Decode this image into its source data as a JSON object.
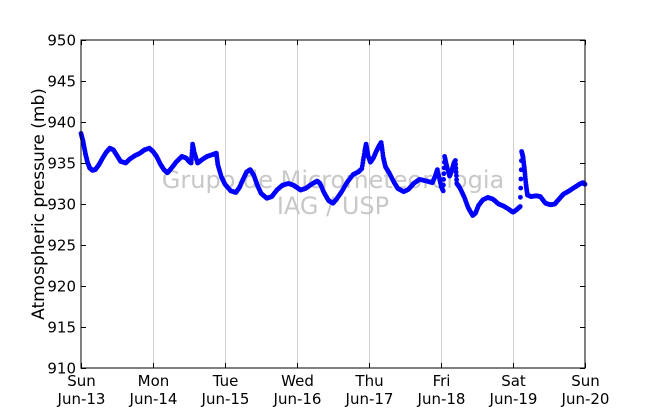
{
  "chart_data": {
    "type": "scatter",
    "title": "",
    "ylabel": "Atmospheric pressure (mb)",
    "xlabel": "",
    "ylim": [
      910,
      950
    ],
    "yticks": [
      910,
      915,
      920,
      925,
      930,
      935,
      940,
      945,
      950
    ],
    "xlim": [
      0,
      7
    ],
    "x_unit": "days since Sun Jun-13",
    "xticks": [
      {
        "day": "Sun",
        "date": "Jun-13"
      },
      {
        "day": "Mon",
        "date": "Jun-14"
      },
      {
        "day": "Tue",
        "date": "Jun-15"
      },
      {
        "day": "Wed",
        "date": "Jun-16"
      },
      {
        "day": "Thu",
        "date": "Jun-17"
      },
      {
        "day": "Fri",
        "date": "Jun-18"
      },
      {
        "day": "Sat",
        "date": "Jun-19"
      },
      {
        "day": "Sun",
        "date": "Jun-20"
      }
    ],
    "grid": "vertical",
    "marker_color": "#0000ff",
    "series": [
      {
        "name": "",
        "points": [
          [
            0.0,
            938.6
          ],
          [
            0.03,
            937.6
          ],
          [
            0.06,
            936.2
          ],
          [
            0.09,
            935.1
          ],
          [
            0.12,
            934.4
          ],
          [
            0.16,
            934.1
          ],
          [
            0.2,
            934.2
          ],
          [
            0.25,
            934.8
          ],
          [
            0.3,
            935.6
          ],
          [
            0.35,
            936.3
          ],
          [
            0.4,
            936.8
          ],
          [
            0.45,
            936.6
          ],
          [
            0.5,
            935.9
          ],
          [
            0.55,
            935.2
          ],
          [
            0.62,
            935.0
          ],
          [
            0.68,
            935.5
          ],
          [
            0.75,
            935.9
          ],
          [
            0.82,
            936.2
          ],
          [
            0.88,
            936.6
          ],
          [
            0.95,
            936.8
          ],
          [
            1.0,
            936.4
          ],
          [
            1.05,
            935.8
          ],
          [
            1.1,
            934.9
          ],
          [
            1.15,
            934.2
          ],
          [
            1.2,
            933.8
          ],
          [
            1.25,
            934.3
          ],
          [
            1.32,
            935.1
          ],
          [
            1.4,
            935.8
          ],
          [
            1.46,
            935.6
          ],
          [
            1.5,
            935.2
          ],
          [
            1.53,
            935.0
          ],
          [
            1.55,
            937.3
          ],
          [
            1.57,
            936.4
          ],
          [
            1.62,
            935.0
          ],
          [
            1.68,
            935.4
          ],
          [
            1.75,
            935.8
          ],
          [
            1.82,
            936.0
          ],
          [
            1.88,
            936.2
          ],
          [
            1.9,
            934.8
          ],
          [
            1.95,
            933.3
          ],
          [
            2.0,
            932.4
          ],
          [
            2.08,
            931.6
          ],
          [
            2.15,
            931.4
          ],
          [
            2.2,
            932.0
          ],
          [
            2.25,
            933.0
          ],
          [
            2.3,
            933.9
          ],
          [
            2.35,
            934.2
          ],
          [
            2.4,
            933.5
          ],
          [
            2.45,
            932.3
          ],
          [
            2.5,
            931.3
          ],
          [
            2.58,
            930.7
          ],
          [
            2.65,
            930.9
          ],
          [
            2.72,
            931.7
          ],
          [
            2.8,
            932.3
          ],
          [
            2.88,
            932.5
          ],
          [
            2.95,
            932.3
          ],
          [
            3.0,
            932.0
          ],
          [
            3.05,
            931.7
          ],
          [
            3.12,
            931.9
          ],
          [
            3.2,
            932.4
          ],
          [
            3.28,
            932.8
          ],
          [
            3.32,
            932.5
          ],
          [
            3.38,
            931.3
          ],
          [
            3.44,
            930.4
          ],
          [
            3.5,
            930.1
          ],
          [
            3.55,
            930.6
          ],
          [
            3.62,
            931.5
          ],
          [
            3.7,
            932.7
          ],
          [
            3.78,
            933.6
          ],
          [
            3.85,
            933.9
          ],
          [
            3.9,
            934.3
          ],
          [
            3.94,
            936.4
          ],
          [
            3.96,
            937.3
          ],
          [
            3.99,
            935.8
          ],
          [
            4.02,
            935.1
          ],
          [
            4.06,
            935.6
          ],
          [
            4.1,
            936.4
          ],
          [
            4.14,
            937.1
          ],
          [
            4.17,
            937.5
          ],
          [
            4.2,
            935.6
          ],
          [
            4.23,
            934.5
          ],
          [
            4.28,
            933.8
          ],
          [
            4.35,
            932.6
          ],
          [
            4.4,
            931.9
          ],
          [
            4.48,
            931.5
          ],
          [
            4.55,
            931.8
          ],
          [
            4.62,
            932.5
          ],
          [
            4.7,
            933.0
          ],
          [
            4.8,
            932.8
          ],
          [
            4.88,
            932.6
          ],
          [
            4.92,
            933.4
          ],
          [
            4.95,
            934.2
          ],
          [
            5.0,
            932.2
          ],
          [
            5.03,
            931.6
          ],
          [
            5.05,
            935.8
          ],
          [
            5.08,
            934.6
          ],
          [
            5.12,
            933.4
          ],
          [
            5.15,
            934.1
          ],
          [
            5.18,
            935.0
          ],
          [
            5.2,
            935.3
          ],
          [
            5.22,
            932.5
          ],
          [
            5.26,
            932.0
          ],
          [
            5.32,
            930.9
          ],
          [
            5.38,
            929.5
          ],
          [
            5.44,
            928.6
          ],
          [
            5.48,
            928.9
          ],
          [
            5.52,
            929.8
          ],
          [
            5.58,
            930.5
          ],
          [
            5.65,
            930.8
          ],
          [
            5.72,
            930.6
          ],
          [
            5.8,
            930.0
          ],
          [
            5.88,
            929.7
          ],
          [
            5.95,
            929.3
          ],
          [
            6.0,
            929.0
          ],
          [
            6.05,
            929.3
          ],
          [
            6.1,
            929.7
          ],
          [
            6.12,
            936.4
          ],
          [
            6.14,
            935.7
          ],
          [
            6.16,
            934.2
          ],
          [
            6.18,
            932.4
          ],
          [
            6.2,
            931.1
          ],
          [
            6.25,
            930.9
          ],
          [
            6.32,
            931.0
          ],
          [
            6.38,
            930.9
          ],
          [
            6.45,
            930.1
          ],
          [
            6.52,
            929.9
          ],
          [
            6.58,
            930.0
          ],
          [
            6.64,
            930.6
          ],
          [
            6.7,
            931.2
          ],
          [
            6.78,
            931.6
          ],
          [
            6.85,
            932.0
          ],
          [
            6.92,
            932.4
          ],
          [
            6.97,
            932.6
          ],
          [
            7.0,
            932.4
          ]
        ]
      }
    ],
    "watermark": [
      "Grupo de Micrometeorologia",
      "IAG / USP"
    ]
  }
}
